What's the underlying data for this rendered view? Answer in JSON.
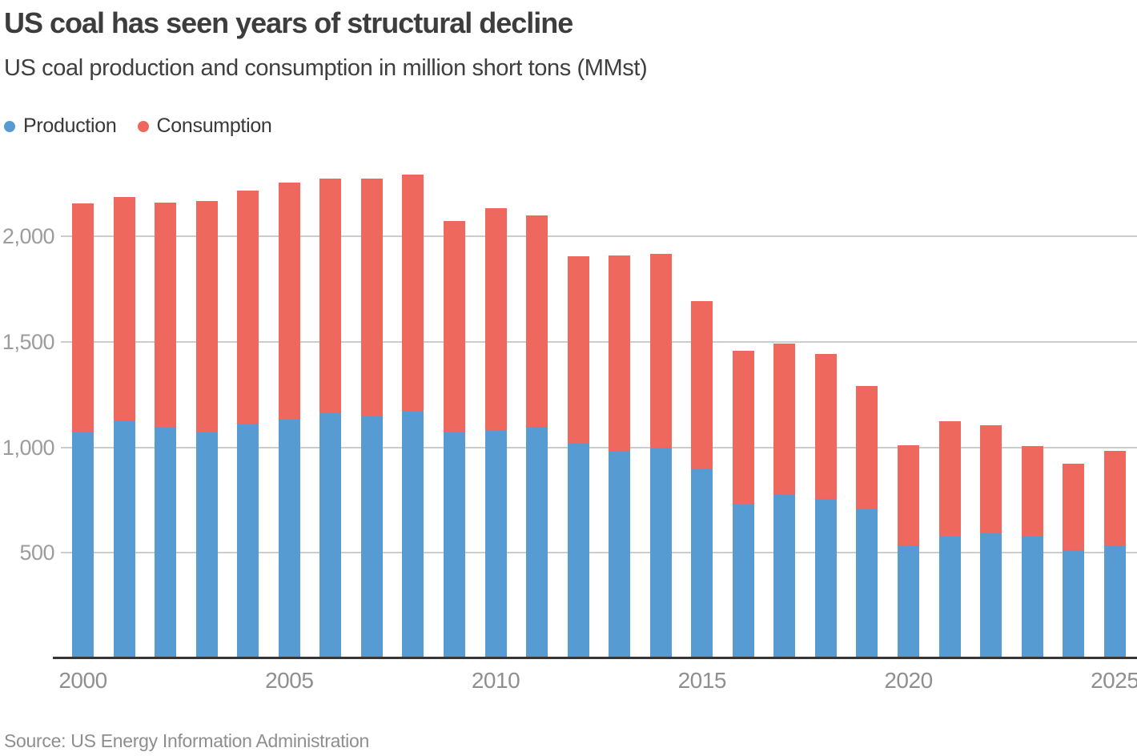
{
  "header": {
    "title": "US coal has seen years of structural decline",
    "subtitle": "US coal production and consumption in million short tons (MMst)"
  },
  "legend": {
    "items": [
      {
        "label": "Production",
        "color": "#569CD2"
      },
      {
        "label": "Consumption",
        "color": "#EE685D"
      }
    ]
  },
  "source": "Source: US Energy Information Administration",
  "colors": {
    "production": "#569CD2",
    "consumption": "#EE685D",
    "gridline": "#CCCCCC",
    "axis_line": "#363636",
    "y_tick_label": "#9C9C9C",
    "x_tick_label": "#8F8F8F",
    "title_text": "#3D3D3D",
    "source_text": "#8E8E8E",
    "background": "#FFFFFF"
  },
  "chart_data": {
    "type": "bar",
    "stacked": true,
    "title": "US coal has seen years of structural decline",
    "subtitle": "US coal production and consumption in million short tons (MMst)",
    "unit": "million short tons (MMst)",
    "x": [
      2000,
      2001,
      2002,
      2003,
      2004,
      2005,
      2006,
      2007,
      2008,
      2009,
      2010,
      2011,
      2012,
      2013,
      2014,
      2015,
      2016,
      2017,
      2018,
      2019,
      2020,
      2021,
      2022,
      2023,
      2024,
      2025
    ],
    "series": [
      {
        "name": "Production",
        "color": "#569CD2",
        "values": [
          1074,
          1128,
          1094,
          1072,
          1112,
          1131,
          1163,
          1147,
          1172,
          1075,
          1084,
          1096,
          1016,
          985,
          1000,
          897,
          728,
          775,
          756,
          706,
          535,
          577,
          594,
          578,
          512,
          531
        ]
      },
      {
        "name": "Consumption",
        "color": "#EE685D",
        "values": [
          1084,
          1060,
          1066,
          1095,
          1107,
          1126,
          1112,
          1128,
          1121,
          998,
          1049,
          1003,
          889,
          924,
          918,
          798,
          731,
          717,
          688,
          587,
          477,
          546,
          513,
          429,
          410,
          452
        ]
      }
    ],
    "totals": [
      2158,
      2188,
      2160,
      2167,
      2219,
      2257,
      2275,
      2275,
      2293,
      2073,
      2133,
      2099,
      1905,
      1909,
      1918,
      1695,
      1459,
      1492,
      1444,
      1293,
      1012,
      1123,
      1107,
      1007,
      922,
      983
    ],
    "ylim": [
      0,
      2400
    ],
    "yticks": [
      500,
      1000,
      1500,
      2000
    ],
    "ytick_labels": [
      "500",
      "1,000",
      "1,500",
      "2,000"
    ],
    "xticks": [
      2000,
      2005,
      2010,
      2015,
      2020,
      2025
    ],
    "grid": true,
    "legend_position": "top-left"
  }
}
